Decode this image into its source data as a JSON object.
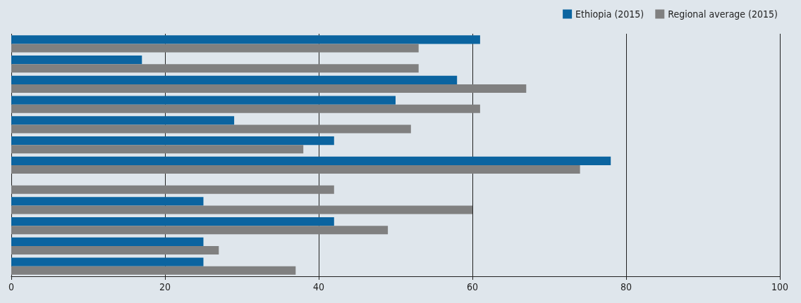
{
  "chart_data": {
    "type": "bar",
    "orientation": "horizontal",
    "categories": [
      null,
      null,
      null,
      null,
      null,
      null,
      null,
      null,
      null,
      null,
      null,
      null
    ],
    "series": [
      {
        "name": "Ethiopia (2015)",
        "color": "#0b64a0",
        "values": [
          61,
          17,
          58,
          50,
          29,
          42,
          78,
          null,
          25,
          42,
          25,
          25
        ]
      },
      {
        "name": "Regional average (2015)",
        "color": "#808080",
        "values": [
          53,
          53,
          67,
          61,
          52,
          38,
          74,
          42,
          60,
          49,
          27,
          37
        ]
      }
    ],
    "xlim": [
      0,
      100
    ],
    "xticks": [
      0,
      20,
      40,
      60,
      80,
      100
    ],
    "grid": "x",
    "legend": "top right"
  }
}
